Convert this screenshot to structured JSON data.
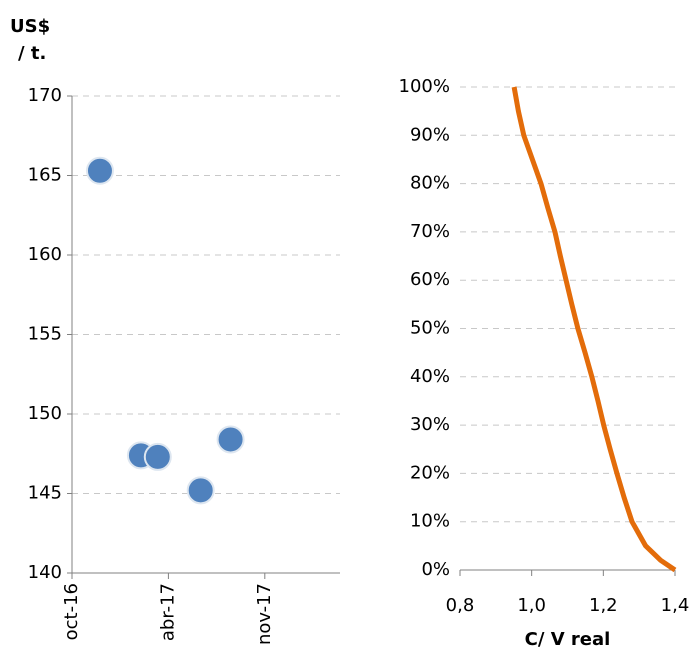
{
  "chart_data": [
    {
      "type": "scatter",
      "ylabel": [
        "US$",
        "/ t."
      ],
      "x": [
        42702,
        42787,
        42822,
        42911,
        42973
      ],
      "series": [
        {
          "color": "#4f81bd",
          "values": [
            165.3,
            147.4,
            147.3,
            145.2,
            148.4
          ]
        }
      ],
      "xlim": [
        42644,
        43200
      ],
      "xticks": [
        {
          "value": 42644,
          "label": "oct-16"
        },
        {
          "value": 42844,
          "label": "abr-17"
        },
        {
          "value": 43044,
          "label": "nov-17"
        }
      ],
      "ylim": [
        140,
        170
      ],
      "yticks": [
        140,
        145,
        150,
        155,
        160,
        165,
        170
      ],
      "grid": true
    },
    {
      "type": "line",
      "xlabel": "C/ V real",
      "x": [
        0.951,
        0.963,
        0.978,
        1.002,
        1.026,
        1.045,
        1.065,
        1.08,
        1.096,
        1.112,
        1.129,
        1.149,
        1.168,
        1.185,
        1.201,
        1.219,
        1.238,
        1.258,
        1.28,
        1.318,
        1.36,
        1.4
      ],
      "series": [
        {
          "color": "#e36c0a",
          "values": [
            100,
            95,
            90,
            85,
            80,
            75,
            70,
            65,
            60,
            55,
            50,
            45,
            40,
            35,
            30,
            25,
            20,
            15,
            10,
            5,
            2,
            0
          ]
        }
      ],
      "xlim": [
        0.8,
        1.4
      ],
      "xticks": [
        {
          "value": 0.8,
          "label": "0,8"
        },
        {
          "value": 1.0,
          "label": "1,0"
        },
        {
          "value": 1.2,
          "label": "1,2"
        },
        {
          "value": 1.4,
          "label": "1,4"
        }
      ],
      "ylim": [
        0,
        100
      ],
      "yticks": [
        {
          "value": 0,
          "label": "0%"
        },
        {
          "value": 10,
          "label": "10%"
        },
        {
          "value": 20,
          "label": "20%"
        },
        {
          "value": 30,
          "label": "30%"
        },
        {
          "value": 40,
          "label": "40%"
        },
        {
          "value": 50,
          "label": "50%"
        },
        {
          "value": 60,
          "label": "60%"
        },
        {
          "value": 70,
          "label": "70%"
        },
        {
          "value": 80,
          "label": "80%"
        },
        {
          "value": 90,
          "label": "90%"
        },
        {
          "value": 100,
          "label": "100%"
        }
      ],
      "grid": true
    }
  ]
}
